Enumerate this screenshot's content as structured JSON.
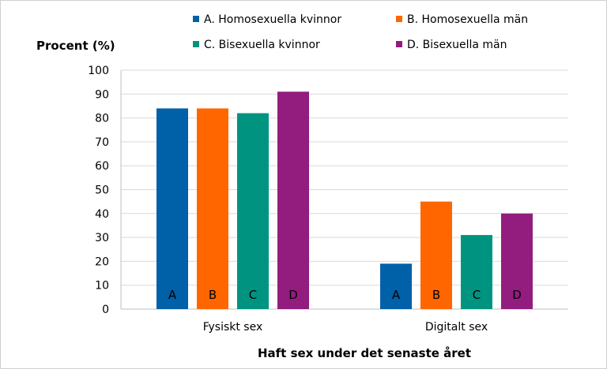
{
  "chart_data": {
    "type": "bar",
    "title": "",
    "ylabel": "Procent (%)",
    "xlabel": "Haft sex under det senaste året",
    "ylim": [
      0,
      100
    ],
    "yticks": [
      0,
      10,
      20,
      30,
      40,
      50,
      60,
      70,
      80,
      90,
      100
    ],
    "grid": true,
    "legend_position": "top",
    "categories": [
      "Fysiskt sex",
      "Digitalt sex"
    ],
    "series": [
      {
        "name": "A. Homosexuella kvinnor",
        "bar_label": "A",
        "color": "#0060A8",
        "values": [
          84,
          19
        ]
      },
      {
        "name": "B. Homosexuella män",
        "bar_label": "B",
        "color": "#FF6600",
        "values": [
          84,
          45
        ]
      },
      {
        "name": "C. Bisexuella kvinnor",
        "bar_label": "C",
        "color": "#009480",
        "values": [
          82,
          31
        ]
      },
      {
        "name": "D. Bisexuella män",
        "bar_label": "D",
        "color": "#931C7F",
        "values": [
          91,
          40
        ]
      }
    ]
  }
}
